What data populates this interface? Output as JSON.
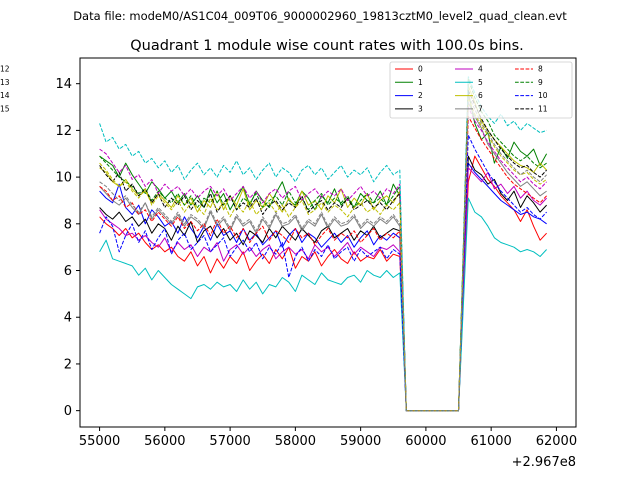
{
  "chart_data": {
    "type": "line",
    "suptitle": "Data file: modeM0/AS1C04_009T06_9000002960_19813cztM0_level2_quad_clean.evt",
    "title": "Quadrant 1 module wise count rates with 100.0s bins.",
    "xlabel": "",
    "ylabel": "",
    "x_offset_label": "+2.967e8",
    "xlim": [
      54700,
      62300
    ],
    "ylim": [
      -0.7,
      15.1
    ],
    "xticks": [
      55000,
      56000,
      57000,
      58000,
      59000,
      60000,
      61000,
      62000
    ],
    "xtick_labels": [
      "55000",
      "56000",
      "57000",
      "58000",
      "59000",
      "60000",
      "61000",
      "62000"
    ],
    "yticks": [
      0,
      2,
      4,
      6,
      8,
      10,
      12,
      14
    ],
    "ytick_labels": [
      "0",
      "2",
      "4",
      "6",
      "8",
      "10",
      "12",
      "14"
    ],
    "grid": false,
    "legend_position": "top-right",
    "x_segments": {
      "seg1": {
        "start": 55000,
        "step": 100,
        "count": 47
      },
      "seg2": {
        "start": 60650,
        "step": 100,
        "count": 13
      }
    },
    "series": [
      {
        "name": "0",
        "color": "#ff0000",
        "dash": "solid",
        "seg1": [
          8.3,
          8.0,
          7.8,
          7.5,
          7.8,
          7.4,
          7.6,
          7.2,
          6.9,
          7.1,
          6.8,
          7.0,
          6.6,
          6.4,
          6.8,
          6.2,
          6.6,
          5.9,
          6.5,
          6.1,
          6.6,
          6.3,
          6.8,
          6.0,
          6.4,
          6.7,
          6.3,
          6.9,
          6.5,
          7.0,
          6.1,
          6.6,
          6.4,
          6.8,
          6.2,
          6.6,
          6.9,
          6.5,
          6.3,
          6.8,
          6.4,
          6.6,
          6.5,
          6.9,
          6.4,
          6.7,
          6.6
        ],
        "seg2": [
          9.8,
          10.9,
          10.4,
          9.9,
          9.6,
          9.2,
          8.9,
          8.6,
          8.1,
          8.6,
          7.9,
          7.3,
          7.6
        ]
      },
      {
        "name": "1",
        "color": "#008000",
        "dash": "solid",
        "seg1": [
          10.9,
          10.7,
          10.5,
          10.0,
          10.6,
          10.1,
          9.7,
          9.3,
          9.8,
          9.5,
          9.1,
          9.4,
          8.9,
          9.3,
          8.8,
          9.2,
          8.7,
          9.5,
          8.9,
          9.3,
          8.6,
          9.1,
          9.6,
          8.8,
          9.4,
          9.0,
          8.7,
          9.3,
          9.8,
          9.0,
          8.8,
          9.4,
          9.1,
          8.6,
          9.2,
          8.9,
          9.5,
          8.8,
          9.1,
          8.7,
          9.3,
          9.0,
          8.9,
          9.4,
          8.8,
          9.7,
          9.2
        ],
        "seg2": [
          13.6,
          12.3,
          11.6,
          11.9,
          10.6,
          11.3,
          10.8,
          11.5,
          11.1,
          10.9,
          11.2,
          10.5,
          11.0
        ]
      },
      {
        "name": "2",
        "color": "#0000ff",
        "dash": "solid",
        "seg1": [
          9.4,
          9.1,
          8.9,
          9.7,
          8.7,
          8.4,
          8.8,
          8.0,
          8.6,
          8.3,
          7.9,
          8.1,
          7.6,
          8.3,
          7.8,
          7.4,
          7.9,
          7.3,
          8.0,
          7.5,
          7.7,
          7.2,
          7.8,
          7.3,
          7.6,
          7.1,
          7.4,
          7.7,
          7.0,
          7.5,
          7.8,
          7.2,
          7.6,
          7.4,
          7.0,
          7.3,
          7.6,
          7.2,
          7.5,
          7.0,
          7.4,
          7.7,
          7.1,
          7.5,
          7.3,
          7.6,
          7.4
        ],
        "seg2": [
          10.6,
          10.2,
          9.9,
          9.6,
          9.3,
          9.0,
          8.8,
          8.6,
          8.4,
          8.5,
          8.3,
          8.2,
          8.0
        ]
      },
      {
        "name": "3",
        "color": "#000000",
        "dash": "solid",
        "seg1": [
          8.7,
          8.4,
          8.2,
          8.5,
          8.1,
          8.3,
          7.9,
          8.2,
          7.6,
          8.0,
          7.8,
          7.3,
          7.9,
          7.5,
          8.1,
          7.2,
          7.7,
          7.9,
          7.4,
          7.8,
          7.3,
          7.6,
          7.1,
          7.7,
          7.5,
          7.2,
          7.8,
          7.4,
          7.9,
          7.6,
          7.3,
          7.8,
          7.5,
          7.2,
          7.7,
          7.9,
          7.4,
          7.6,
          7.8,
          7.3,
          7.7,
          7.5,
          7.9,
          7.4,
          7.6,
          7.8,
          7.7
        ],
        "seg2": [
          10.9,
          10.3,
          10.1,
          9.7,
          9.9,
          9.3,
          9.0,
          9.4,
          8.7,
          9.2,
          8.9,
          8.5,
          8.8
        ]
      },
      {
        "name": "4",
        "color": "#bf00bf",
        "dash": "solid",
        "seg1": [
          8.6,
          8.2,
          8.0,
          7.8,
          7.5,
          7.6,
          7.3,
          7.5,
          7.2,
          7.0,
          7.4,
          6.8,
          7.2,
          6.9,
          7.1,
          6.6,
          7.0,
          6.8,
          7.2,
          6.4,
          6.9,
          7.1,
          6.7,
          7.0,
          6.6,
          6.9,
          7.1,
          6.5,
          6.8,
          7.0,
          6.7,
          6.9,
          6.5,
          7.1,
          6.8,
          7.0,
          6.6,
          6.9,
          7.2,
          6.7,
          7.0,
          6.8,
          6.6,
          7.0,
          6.9,
          7.1,
          6.8
        ],
        "seg2": [
          10.4,
          10.1,
          9.8,
          10.2,
          9.5,
          9.7,
          9.3,
          9.6,
          9.1,
          9.4,
          9.0,
          8.8,
          9.1
        ]
      },
      {
        "name": "5",
        "color": "#00bfbf",
        "dash": "solid",
        "seg1": [
          6.8,
          7.3,
          6.5,
          6.4,
          6.3,
          6.2,
          5.8,
          6.1,
          5.6,
          6.0,
          5.7,
          5.4,
          5.2,
          5.0,
          4.8,
          5.3,
          5.4,
          5.2,
          5.5,
          5.3,
          5.4,
          5.1,
          5.6,
          5.2,
          5.5,
          5.0,
          5.4,
          5.3,
          5.7,
          5.5,
          5.1,
          5.8,
          5.6,
          5.4,
          5.9,
          5.6,
          5.5,
          5.4,
          5.7,
          5.8,
          5.5,
          6.0,
          5.8,
          5.7,
          6.0,
          5.7,
          5.9
        ],
        "seg2": [
          9.1,
          8.5,
          8.3,
          7.9,
          7.4,
          7.2,
          7.1,
          7.0,
          6.8,
          6.9,
          6.8,
          6.6,
          6.9
        ]
      },
      {
        "name": "6",
        "color": "#bfbf00",
        "dash": "solid",
        "seg1": [
          10.4,
          10.2,
          9.8,
          9.6,
          9.9,
          9.5,
          9.2,
          9.4,
          8.9,
          9.3,
          9.0,
          8.7,
          9.2,
          8.8,
          9.1,
          8.5,
          9.0,
          8.7,
          9.4,
          8.6,
          9.2,
          8.8,
          9.5,
          8.6,
          9.0,
          8.7,
          9.3,
          8.9,
          8.5,
          9.1,
          8.7,
          9.4,
          8.8,
          9.0,
          8.6,
          9.2,
          8.9,
          9.5,
          8.7,
          9.1,
          8.8,
          9.3,
          8.6,
          9.0,
          9.2,
          8.9,
          9.4
        ],
        "seg2": [
          13.9,
          13.2,
          12.4,
          12.0,
          11.6,
          11.3,
          11.0,
          10.7,
          10.5,
          10.4,
          10.2,
          10.6,
          10.3
        ]
      },
      {
        "name": "7",
        "color": "#808080",
        "dash": "solid",
        "seg1": [
          9.6,
          9.3,
          9.0,
          8.8,
          9.1,
          8.7,
          8.4,
          8.9,
          8.2,
          8.6,
          8.3,
          8.0,
          8.4,
          7.9,
          8.3,
          8.1,
          7.8,
          8.5,
          7.9,
          8.2,
          7.7,
          8.3,
          7.9,
          8.1,
          7.6,
          8.2,
          7.8,
          8.4,
          7.9,
          8.0,
          8.3,
          7.7,
          8.1,
          7.9,
          8.4,
          7.8,
          8.2,
          7.9,
          8.0,
          8.3,
          7.8,
          8.1,
          7.9,
          8.2,
          8.0,
          8.3,
          7.9
        ],
        "seg2": [
          13.2,
          12.6,
          12.1,
          11.4,
          11.0,
          10.6,
          10.2,
          9.9,
          9.6,
          9.8,
          9.5,
          9.2,
          9.4
        ]
      },
      {
        "name": "8",
        "color": "#ff0000",
        "dash": "dashed",
        "seg1": [
          9.6,
          9.4,
          9.0,
          9.2,
          8.7,
          8.9,
          8.4,
          8.6,
          8.1,
          8.5,
          8.2,
          7.9,
          8.3,
          7.8,
          8.1,
          7.7,
          8.0,
          7.5,
          8.2,
          7.6,
          7.9,
          7.4,
          7.8,
          7.2,
          7.6,
          7.9,
          7.3,
          7.7,
          7.5,
          7.2,
          7.8,
          7.4,
          7.6,
          7.1,
          7.5,
          7.8,
          7.3,
          7.6,
          7.4,
          7.7,
          7.2,
          7.5,
          7.8,
          7.3,
          7.6,
          7.4,
          7.7
        ],
        "seg2": [
          12.6,
          12.1,
          11.6,
          11.2,
          10.8,
          10.4,
          10.0,
          9.7,
          9.5,
          9.3,
          9.1,
          8.9,
          9.2
        ]
      },
      {
        "name": "9",
        "color": "#008000",
        "dash": "dashed",
        "seg1": [
          10.9,
          10.6,
          10.3,
          10.0,
          9.8,
          9.6,
          9.3,
          9.5,
          9.0,
          9.4,
          9.1,
          8.9,
          9.3,
          8.8,
          9.2,
          8.7,
          9.1,
          8.9,
          9.4,
          8.8,
          9.2,
          8.6,
          9.1,
          8.9,
          9.3,
          8.7,
          9.0,
          9.2,
          8.8,
          9.4,
          8.9,
          9.1,
          8.6,
          9.0,
          9.3,
          8.8,
          9.1,
          8.9,
          9.2,
          8.7,
          9.0,
          9.3,
          8.9,
          9.1,
          8.8,
          9.2,
          9.6
        ],
        "seg2": [
          14.2,
          13.4,
          12.8,
          12.4,
          11.8,
          11.5,
          11.2,
          10.9,
          10.7,
          10.9,
          10.6,
          10.4,
          10.6
        ]
      },
      {
        "name": "10",
        "color": "#0000ff",
        "dash": "dashed",
        "seg1": [
          7.6,
          8.3,
          7.9,
          6.8,
          7.5,
          8.0,
          7.2,
          7.7,
          6.9,
          7.4,
          7.8,
          6.7,
          7.3,
          7.6,
          6.9,
          7.2,
          7.5,
          6.8,
          7.1,
          7.4,
          6.6,
          7.0,
          7.3,
          6.8,
          7.2,
          6.5,
          7.0,
          6.7,
          7.2,
          5.7,
          6.6,
          7.0,
          6.4,
          6.9,
          6.6,
          7.1,
          6.5,
          6.8,
          7.0,
          6.4,
          6.9,
          6.6,
          6.8,
          7.0,
          6.5,
          6.9,
          6.7
        ],
        "seg2": [
          11.8,
          11.2,
          10.7,
          10.2,
          9.8,
          9.4,
          9.1,
          8.8,
          8.5,
          8.7,
          8.4,
          8.2,
          8.5
        ]
      },
      {
        "name": "11",
        "color": "#000000",
        "dash": "dashed",
        "seg1": [
          10.5,
          10.1,
          9.8,
          10.2,
          9.4,
          9.7,
          9.2,
          9.5,
          8.9,
          9.3,
          8.7,
          9.1,
          8.8,
          9.2,
          8.6,
          9.0,
          8.7,
          9.3,
          8.5,
          8.9,
          9.2,
          8.6,
          8.9,
          8.7,
          9.1,
          8.4,
          8.8,
          9.0,
          8.6,
          8.9,
          8.7,
          9.2,
          8.5,
          8.8,
          9.0,
          8.6,
          8.9,
          8.7,
          9.1,
          8.6,
          8.8,
          9.0,
          8.7,
          8.9,
          8.6,
          9.0,
          9.3
        ],
        "seg2": [
          13.7,
          13.1,
          12.5,
          12.0,
          11.6,
          11.2,
          10.9,
          10.6,
          10.4,
          10.5,
          10.2,
          10.0,
          10.3
        ]
      },
      {
        "name": "12",
        "color": "#bf00bf",
        "dash": "dashed",
        "seg1": [
          11.2,
          11.0,
          10.6,
          10.2,
          10.5,
          9.9,
          10.1,
          9.6,
          9.9,
          9.3,
          9.7,
          9.4,
          9.6,
          9.2,
          9.5,
          9.1,
          9.4,
          9.6,
          9.2,
          9.5,
          9.0,
          9.3,
          9.6,
          9.1,
          9.4,
          8.9,
          9.3,
          9.5,
          9.1,
          9.4,
          9.6,
          9.0,
          9.3,
          9.5,
          9.1,
          9.4,
          9.2,
          9.5,
          9.0,
          9.3,
          9.6,
          9.2,
          9.4,
          9.1,
          9.5,
          9.3,
          9.7
        ],
        "seg2": [
          13.0,
          12.4,
          12.0,
          11.5,
          11.1,
          10.7,
          10.4,
          10.1,
          9.8,
          10.0,
          9.7,
          9.5,
          9.8
        ]
      },
      {
        "name": "13",
        "color": "#00bfbf",
        "dash": "dashed",
        "seg1": [
          12.3,
          11.5,
          11.7,
          11.2,
          11.4,
          10.9,
          11.1,
          10.6,
          10.8,
          10.4,
          10.7,
          10.2,
          10.5,
          9.9,
          10.3,
          10.6,
          10.1,
          10.4,
          10.0,
          10.5,
          10.2,
          10.7,
          10.1,
          10.4,
          9.9,
          10.3,
          10.6,
          10.0,
          10.4,
          10.2,
          9.8,
          10.3,
          10.5,
          10.1,
          10.4,
          9.9,
          10.2,
          10.5,
          10.0,
          10.3,
          10.1,
          10.4,
          9.8,
          10.2,
          10.5,
          10.1,
          10.3
        ],
        "seg2": [
          14.3,
          13.6,
          13.0,
          12.6,
          12.3,
          12.7,
          12.2,
          12.4,
          12.0,
          12.3,
          12.1,
          11.9,
          12.0
        ]
      },
      {
        "name": "14",
        "color": "#bfbf00",
        "dash": "dashed",
        "seg1": [
          10.6,
          10.3,
          9.9,
          9.6,
          9.8,
          9.4,
          9.1,
          9.5,
          8.8,
          9.2,
          8.9,
          8.6,
          9.0,
          8.5,
          8.9,
          8.7,
          8.4,
          9.1,
          8.6,
          8.9,
          8.3,
          8.8,
          8.5,
          9.0,
          8.4,
          8.7,
          8.9,
          8.5,
          8.8,
          8.3,
          8.7,
          9.0,
          8.4,
          8.6,
          8.9,
          8.5,
          8.8,
          8.6,
          8.3,
          8.7,
          8.9,
          8.5,
          8.7,
          8.4,
          8.8,
          8.6,
          8.9
        ],
        "seg2": [
          13.4,
          12.7,
          12.2,
          11.8,
          11.3,
          10.9,
          10.6,
          10.3,
          10.1,
          10.2,
          9.9,
          9.7,
          9.9
        ]
      },
      {
        "name": "15",
        "color": "#808080",
        "dash": "dashed",
        "seg1": [
          9.8,
          9.6,
          9.3,
          9.0,
          9.2,
          8.8,
          8.5,
          8.9,
          8.3,
          8.7,
          8.4,
          8.1,
          8.5,
          8.0,
          8.4,
          8.2,
          7.9,
          8.6,
          8.0,
          8.3,
          7.8,
          8.4,
          8.0,
          8.2,
          7.7,
          8.3,
          7.9,
          8.5,
          8.0,
          8.1,
          8.4,
          7.8,
          8.2,
          8.0,
          8.5,
          7.9,
          8.3,
          8.0,
          8.1,
          8.4,
          7.9,
          8.2,
          8.0,
          8.3,
          8.1,
          8.4,
          8.0
        ],
        "seg2": [
          13.5,
          12.9,
          12.3,
          11.9,
          11.4,
          11.0,
          10.7,
          10.4,
          10.1,
          10.3,
          10.0,
          9.8,
          10.1
        ]
      }
    ]
  }
}
